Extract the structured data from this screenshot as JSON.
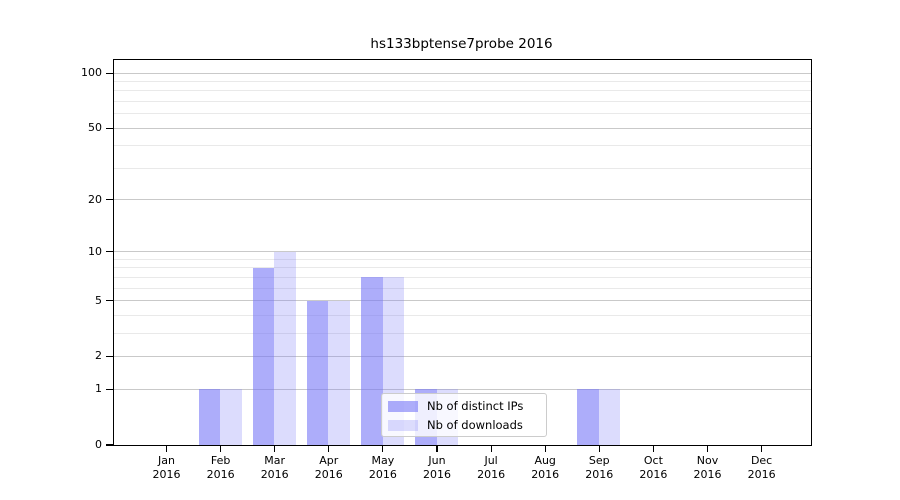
{
  "title": "hs133bptense7probe 2016",
  "chart_data": {
    "type": "bar",
    "title": "hs133bptense7probe 2016",
    "categories": [
      "Jan",
      "Feb",
      "Mar",
      "Apr",
      "May",
      "Jun",
      "Jul",
      "Aug",
      "Sep",
      "Oct",
      "Nov",
      "Dec"
    ],
    "x_tick_year": "2016",
    "series": [
      {
        "name": "Nb of distinct IPs",
        "color": "rgba(118,118,246,0.60)",
        "values": [
          0,
          1,
          8,
          5,
          7,
          1,
          0,
          0,
          1,
          0,
          0,
          0
        ]
      },
      {
        "name": "Nb of downloads",
        "color": "rgba(118,118,246,0.26)",
        "values": [
          0,
          1,
          10,
          5,
          7,
          1,
          0,
          0,
          1,
          0,
          0,
          0
        ]
      }
    ],
    "y_axis": {
      "scale": "log1p",
      "ticks": [
        0,
        1,
        2,
        5,
        10,
        20,
        50,
        100
      ],
      "minor_gridlines": [
        3,
        4,
        6,
        7,
        8,
        9,
        30,
        40,
        60,
        70,
        80,
        90
      ],
      "range": [
        0,
        118
      ]
    },
    "legend": {
      "labels": [
        "Nb of distinct IPs",
        "Nb of downloads"
      ],
      "position": "lower-center"
    },
    "grid": true
  },
  "colors": {
    "bar_primary": "rgba(118,118,246,0.60)",
    "bar_secondary": "rgba(118,118,246,0.26)",
    "grid_major": "#c9c9c9",
    "grid_minor": "#e9e9e9",
    "background": "#ffffff",
    "text": "#000000"
  }
}
